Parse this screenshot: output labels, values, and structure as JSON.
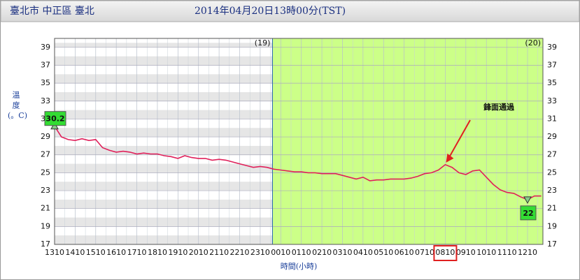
{
  "chart_data": {
    "type": "line",
    "location": "臺北市 中正區 臺北",
    "title": "2014年04月20日13時00分(TST)",
    "y_label": "溫度",
    "y_unit": "(。C)",
    "x_label": "時間(小時)",
    "day_labels": [
      "(19)",
      "(20)"
    ],
    "annotation": "鋒面通過",
    "color": "#e0205a",
    "categories": [
      "1310",
      null,
      null,
      "1410",
      null,
      null,
      "1510",
      null,
      null,
      "1610",
      null,
      null,
      "1710",
      null,
      null,
      "1810",
      null,
      null,
      "1910",
      null,
      null,
      "2010",
      null,
      null,
      "2110",
      null,
      null,
      "2210",
      null,
      null,
      "2310",
      null,
      null,
      "0010",
      null,
      null,
      "0110",
      null,
      null,
      "0210",
      null,
      null,
      "0310",
      null,
      null,
      "0410",
      null,
      null,
      "0510",
      null,
      null,
      "0610",
      null,
      null,
      "0710",
      null,
      null,
      "0810",
      null,
      null,
      "0910",
      null,
      null,
      "1010",
      null,
      null,
      "1110",
      null,
      null,
      "1210",
      null,
      null
    ],
    "values": [
      30.2,
      29.0,
      28.7,
      28.6,
      28.8,
      28.6,
      28.7,
      27.8,
      27.5,
      27.3,
      27.4,
      27.3,
      27.1,
      27.2,
      27.1,
      27.1,
      26.9,
      26.8,
      26.6,
      26.9,
      26.7,
      26.6,
      26.6,
      26.4,
      26.5,
      26.4,
      26.2,
      26.0,
      25.8,
      25.6,
      25.7,
      25.6,
      25.4,
      25.3,
      25.2,
      25.1,
      25.1,
      25.0,
      25.0,
      24.9,
      24.9,
      24.9,
      24.7,
      24.5,
      24.3,
      24.5,
      24.1,
      24.2,
      24.2,
      24.3,
      24.3,
      24.3,
      24.4,
      24.6,
      24.9,
      25.0,
      25.3,
      25.9,
      25.6,
      25.0,
      24.8,
      25.2,
      25.3,
      24.5,
      23.7,
      23.1,
      22.8,
      22.7,
      22.3,
      22.0,
      22.4,
      22.4
    ],
    "ylim": [
      17,
      40
    ],
    "yticks": [
      17,
      19,
      21,
      23,
      25,
      27,
      29,
      31,
      33,
      35,
      37,
      39
    ]
  }
}
